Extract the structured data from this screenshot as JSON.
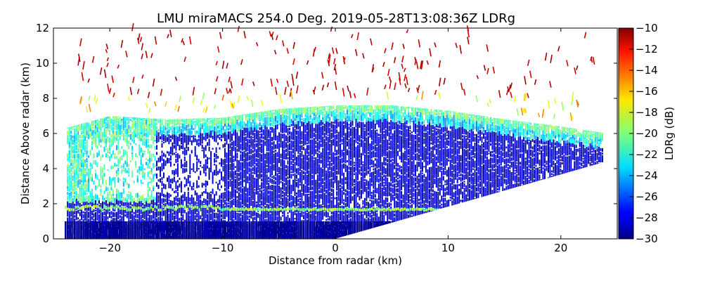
{
  "chart_data": {
    "type": "heatmap",
    "title": "LMU miraMACS 254.0 Deg. 2019-05-28T13:08:36Z  LDRg",
    "xlabel": "Distance from radar (km)",
    "ylabel": "Distance Above radar  (km)",
    "xlim": [
      -25,
      25
    ],
    "ylim": [
      0,
      12
    ],
    "xticks": [
      -20,
      -10,
      0,
      10,
      20
    ],
    "xtick_labels": [
      "−20",
      "−10",
      "0",
      "10",
      "20"
    ],
    "yticks": [
      0,
      2,
      4,
      6,
      8,
      10,
      12
    ],
    "ytick_labels": [
      "0",
      "2",
      "4",
      "6",
      "8",
      "10",
      "12"
    ],
    "colorbar": {
      "label": "LDRg (dB)",
      "colormap": "jet",
      "range": [
        -30,
        -10
      ],
      "ticks": [
        -30,
        -28,
        -26,
        -24,
        -22,
        -20,
        -18,
        -16,
        -14,
        -12,
        -10
      ],
      "tick_labels": [
        "−30",
        "−28",
        "−26",
        "−24",
        "−22",
        "−20",
        "−18",
        "−16",
        "−14",
        "−12",
        "−10"
      ]
    },
    "scan": {
      "elevation_min_deg": 10,
      "range_max_km": 24,
      "echo_top_km": {
        "x": [
          -24,
          -20,
          -15,
          -10,
          -5,
          0,
          5,
          10,
          15,
          20,
          24
        ],
        "y": [
          6.3,
          7.0,
          6.8,
          6.9,
          7.4,
          7.6,
          7.6,
          7.3,
          6.8,
          6.4,
          6.0
        ]
      },
      "melting_layer_km": 1.6,
      "melting_layer_ldr_db": -20,
      "cirrus_top_km": 12,
      "cloud_core_ldr_db": -28.5,
      "cloud_edge_ldr_db": -20
    },
    "colors": {
      "axes_frame": "#000000",
      "background": "#ffffff"
    }
  }
}
